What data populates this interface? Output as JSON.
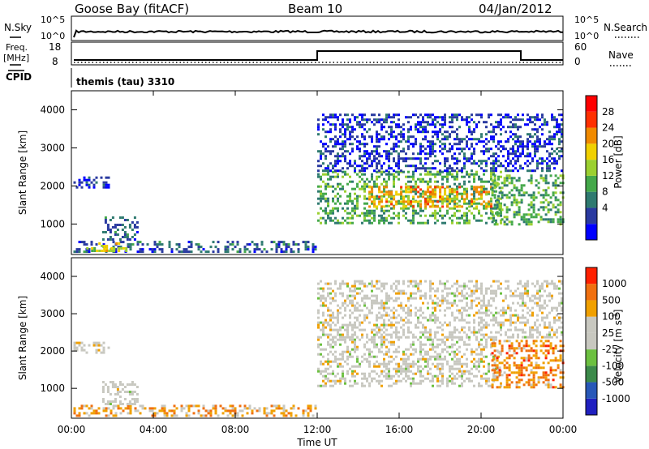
{
  "header": {
    "station": "Goose Bay (fitACF)",
    "beam": "Beam 10",
    "date": "04/Jan/2012"
  },
  "status": {
    "nsky_label": "N.Sky",
    "nsky_ticks": [
      "10^5",
      "10^0"
    ],
    "nsearch_label": "N.Search",
    "nsearch_ticks": [
      "10^5",
      "10^0"
    ],
    "freq_label": "Freq.",
    "freq_unit": "[MHz]",
    "freq_ticks": [
      "18",
      "8"
    ],
    "nave_label": "Nave",
    "nave_ticks": [
      "60",
      "0"
    ],
    "cpid_label": "CPID",
    "cpid_value": "themis (tau) 3310"
  },
  "colors": {
    "power_bar": [
      "#0000ff",
      "#2a3aa0",
      "#2f7a70",
      "#44a84a",
      "#9bd030",
      "#f0d000",
      "#f08a00",
      "#ff3000",
      "#ff0000"
    ],
    "velocity_bar": [
      "#2020c0",
      "#2858b8",
      "#3c8a4a",
      "#6cc040",
      "#c8c8c0",
      "#c8c8c0",
      "#f0a000",
      "#f07010",
      "#ff2000"
    ],
    "ground_scatter": "#c8c8c0"
  },
  "chart_data": [
    {
      "type": "heatmap",
      "name": "power-panel",
      "ylabel": "Slant Range [km]",
      "yticks": [
        "4000",
        "3000",
        "2000",
        "1000"
      ],
      "ylim": [
        200,
        4500
      ],
      "xlim": [
        0,
        24
      ],
      "colorbar_label": "Power [dB]",
      "colorbar_ticks": [
        "28",
        "24",
        "20",
        "16",
        "12",
        "8",
        "4"
      ],
      "regions": [
        {
          "t0": 0.1,
          "t1": 11.9,
          "r0": 280,
          "r1": 560,
          "level": 1.5
        },
        {
          "t0": 0.6,
          "t1": 2.8,
          "r0": 300,
          "r1": 520,
          "level": 4.5
        },
        {
          "t0": 0.1,
          "t1": 1.8,
          "r0": 1950,
          "r1": 2250,
          "level": 0.5
        },
        {
          "t0": 1.5,
          "t1": 3.2,
          "r0": 600,
          "r1": 1200,
          "level": 1.5
        },
        {
          "t0": 12.0,
          "t1": 21.0,
          "r0": 1050,
          "r1": 2400,
          "level": 3.0
        },
        {
          "t0": 14.5,
          "t1": 20.5,
          "r0": 1450,
          "r1": 2000,
          "level": 5.5
        },
        {
          "t0": 20.5,
          "t1": 24.0,
          "r0": 1000,
          "r1": 2300,
          "level": 3.0
        },
        {
          "t0": 12.0,
          "t1": 24.0,
          "r0": 2400,
          "r1": 3900,
          "level": 0.8
        }
      ]
    },
    {
      "type": "heatmap",
      "name": "velocity-panel",
      "ylabel": "Slant Range [km]",
      "yticks": [
        "4000",
        "3000",
        "2000",
        "1000"
      ],
      "ylim": [
        200,
        4500
      ],
      "xlim": [
        0,
        24
      ],
      "xticks": [
        "00:00",
        "04:00",
        "08:00",
        "12:00",
        "16:00",
        "20:00",
        "00:00"
      ],
      "xlabel": "Time UT",
      "colorbar_label": "Velocity [m s^-1]",
      "colorbar_ticks": [
        "1000",
        "500",
        "100",
        "25",
        "-25",
        "-100",
        "-500",
        "-1000"
      ],
      "regions": [
        {
          "t0": 0.1,
          "t1": 11.9,
          "r0": 280,
          "r1": 560,
          "level": 6.0
        },
        {
          "t0": 0.1,
          "t1": 1.8,
          "r0": 1950,
          "r1": 2250,
          "level": 4.5
        },
        {
          "t0": 1.5,
          "t1": 3.2,
          "r0": 550,
          "r1": 1200,
          "level": 4.5
        },
        {
          "t0": 12.0,
          "t1": 21.0,
          "r0": 1050,
          "r1": 2400,
          "level": 4.5
        },
        {
          "t0": 20.5,
          "t1": 24.0,
          "r0": 1000,
          "r1": 2300,
          "level": 6.5
        },
        {
          "t0": 12.0,
          "t1": 24.0,
          "r0": 2400,
          "r1": 3900,
          "level": 4.6
        }
      ]
    }
  ]
}
